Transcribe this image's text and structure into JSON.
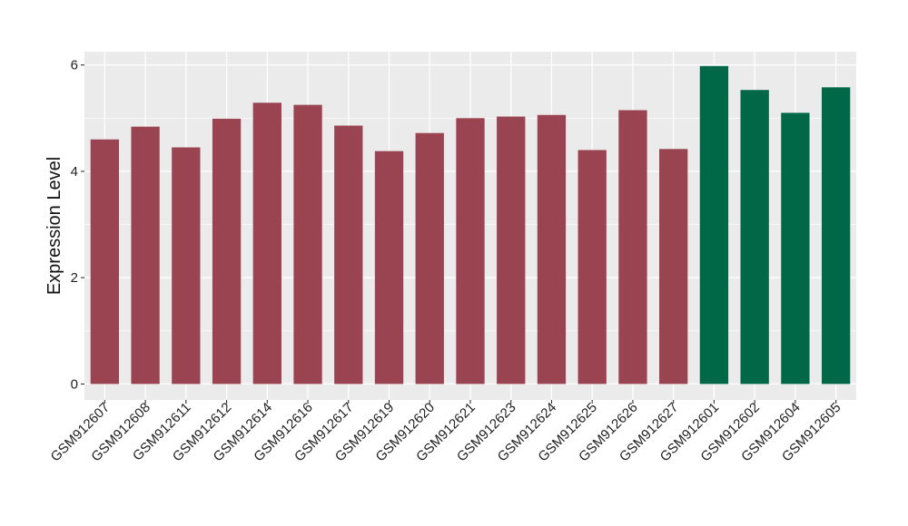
{
  "chart_data": {
    "type": "bar",
    "title": "",
    "xlabel": "",
    "ylabel": "Expression Level",
    "ylim": [
      -0.3,
      6.25
    ],
    "yticks": [
      0,
      2,
      4,
      6
    ],
    "grid": true,
    "legend": "none",
    "categories": [
      "GSM912607",
      "GSM912608",
      "GSM912611",
      "GSM912612",
      "GSM912614",
      "GSM912616",
      "GSM912617",
      "GSM912619",
      "GSM912620",
      "GSM912621",
      "GSM912623",
      "GSM912624",
      "GSM912625",
      "GSM912626",
      "GSM912627",
      "GSM912601",
      "GSM912602",
      "GSM912604",
      "GSM912605"
    ],
    "values": [
      4.6,
      4.84,
      4.45,
      4.99,
      5.29,
      5.25,
      4.86,
      4.38,
      4.72,
      5.0,
      5.03,
      5.06,
      4.4,
      5.15,
      4.42,
      5.98,
      5.53,
      5.1,
      5.58
    ],
    "groups": [
      "a",
      "a",
      "a",
      "a",
      "a",
      "a",
      "a",
      "a",
      "a",
      "a",
      "a",
      "a",
      "a",
      "a",
      "a",
      "b",
      "b",
      "b",
      "b"
    ],
    "colors": {
      "a": "#9b4451",
      "b": "#006847"
    },
    "panel_background": "#ebebeb",
    "gridline_color": "#ffffff"
  }
}
